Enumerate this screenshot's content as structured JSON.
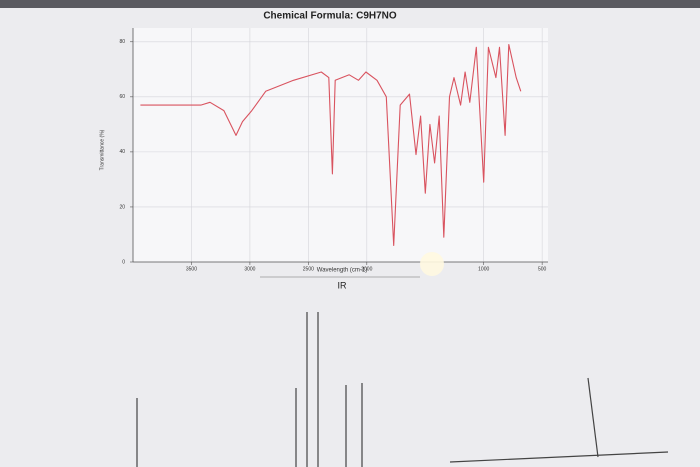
{
  "chart_data": {
    "type": "line",
    "title": "Chemical Formula: C9H7NO",
    "ylabel": "Transmittance (%)",
    "xlabel": "Wavelength (cm-1)",
    "subtitle": "IR",
    "x": [
      3937,
      3738,
      3420,
      3341,
      3222,
      3119,
      3063,
      2984,
      2865,
      2627,
      2389,
      2325,
      2294,
      2270,
      2151,
      2071,
      2008,
      1913,
      1833,
      1770,
      1714,
      1635,
      1579,
      1540,
      1500,
      1460,
      1420,
      1381,
      1341,
      1293,
      1254,
      1198,
      1159,
      1119,
      1063,
      1000,
      960,
      896,
      865,
      817,
      785,
      722,
      683
    ],
    "values": [
      57,
      57,
      57,
      58,
      55,
      46,
      51,
      55,
      62,
      66,
      69,
      67,
      32,
      66,
      68,
      66,
      69,
      66,
      60,
      6,
      57,
      61,
      39,
      53,
      25,
      50,
      36,
      53,
      9,
      60,
      67,
      57,
      69,
      58,
      78,
      29,
      78,
      67,
      78,
      46,
      79,
      67,
      62
    ],
    "color": "#d9535f",
    "xlim": [
      4000,
      450
    ],
    "ylim": [
      0,
      85
    ],
    "xticks": [
      3500,
      3000,
      2500,
      2000,
      1000,
      500
    ],
    "yticks": [
      0,
      20,
      40,
      60,
      80
    ],
    "grid": true
  }
}
